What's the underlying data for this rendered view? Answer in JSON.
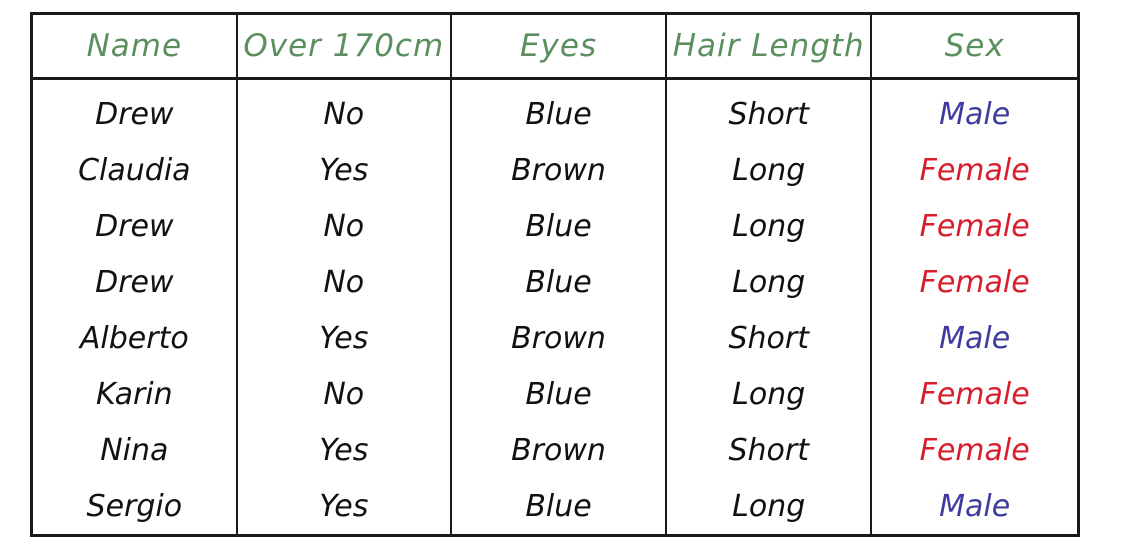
{
  "colors": {
    "header_text": "#5b8f5f",
    "cell_text": "#111111",
    "male": "#3d3d9e",
    "female": "#d81d2b",
    "border": "#1a1a1a"
  },
  "table": {
    "headers": [
      "Name",
      "Over 170cm",
      "Eyes",
      "Hair Length",
      "Sex"
    ],
    "rows": [
      [
        "Drew",
        "No",
        "Blue",
        "Short",
        "Male"
      ],
      [
        "Claudia",
        "Yes",
        "Brown",
        "Long",
        "Female"
      ],
      [
        "Drew",
        "No",
        "Blue",
        "Long",
        "Female"
      ],
      [
        "Drew",
        "No",
        "Blue",
        "Long",
        "Female"
      ],
      [
        "Alberto",
        "Yes",
        "Brown",
        "Short",
        "Male"
      ],
      [
        "Karin",
        "No",
        "Blue",
        "Long",
        "Female"
      ],
      [
        "Nina",
        "Yes",
        "Brown",
        "Short",
        "Female"
      ],
      [
        "Sergio",
        "Yes",
        "Blue",
        "Long",
        "Male"
      ]
    ]
  }
}
